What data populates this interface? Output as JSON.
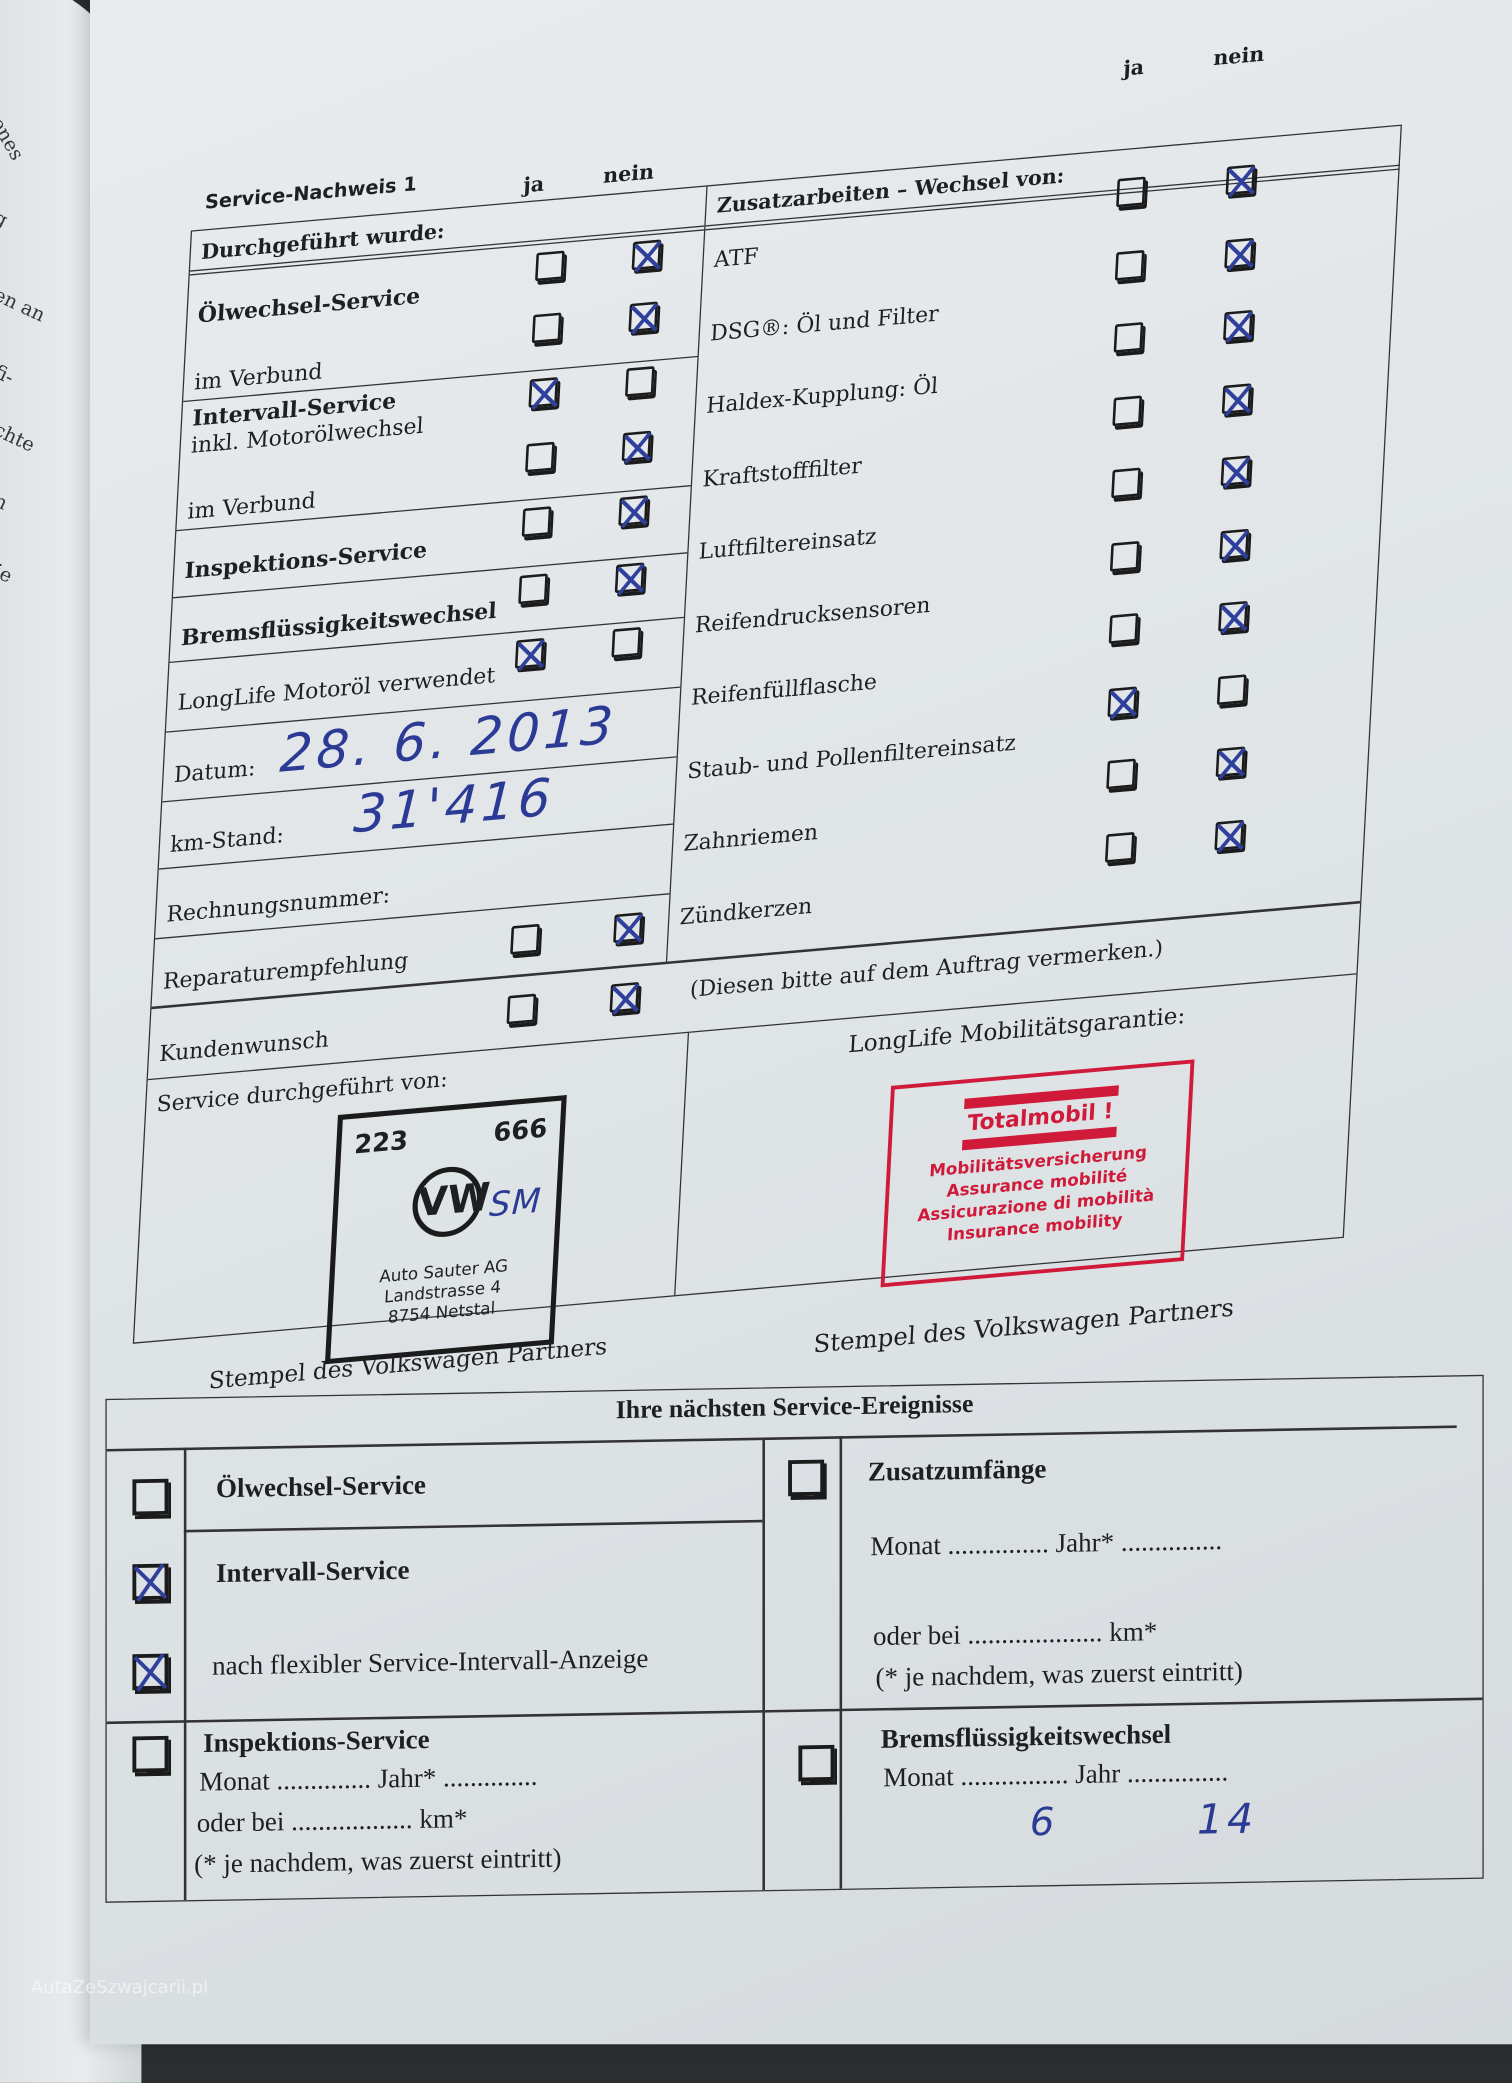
{
  "left_page_fragments": [
    "benes",
    "g",
    "en an",
    "fi-",
    "chte",
    "n",
    "ie"
  ],
  "form": {
    "title": "Service-Nachweis 1",
    "ja": "ja",
    "nein": "nein",
    "left_heading": "Durchgeführt wurde:",
    "left_rows": [
      {
        "label": "Ölwechsel-Service",
        "bold": true,
        "ja": false,
        "nein": true
      },
      {
        "label": "im Verbund",
        "bold": false,
        "ja": false,
        "nein": true
      },
      {
        "label": "Intervall-Service",
        "sub": "inkl. Motorölwechsel",
        "bold": true,
        "ja": true,
        "nein": false
      },
      {
        "label": "im Verbund",
        "bold": false,
        "ja": false,
        "nein": true
      },
      {
        "label": "Inspektions-Service",
        "bold": true,
        "ja": false,
        "nein": true
      },
      {
        "label": "Bremsflüssigkeitswechsel",
        "bold": true,
        "ja": false,
        "nein": true
      },
      {
        "label": "LongLife Motoröl verwendet",
        "bold": false,
        "ja": true,
        "nein": false
      }
    ],
    "datum_label": "Datum:",
    "datum_value": "28. 6. 2013",
    "km_label": "km-Stand:",
    "km_value": "31'416",
    "rechnung_label": "Rechnungsnummer:",
    "reparatur": {
      "label": "Reparaturempfehlung",
      "ja": false,
      "nein": true
    },
    "kundenwunsch": {
      "label": "Kundenwunsch",
      "ja": false,
      "nein": true
    },
    "kundenwunsch_note": "(Diesen bitte auf dem Auftrag vermerken.)",
    "right_heading": "Zusatzarbeiten – Wechsel von:",
    "right_rows": [
      {
        "label": "ATF",
        "ja": false,
        "nein": true
      },
      {
        "label": "DSG®: Öl und Filter",
        "ja": false,
        "nein": true
      },
      {
        "label": "Haldex-Kupplung: Öl",
        "ja": false,
        "nein": true
      },
      {
        "label": "Kraftstofffilter",
        "ja": false,
        "nein": true
      },
      {
        "label": "Luftfiltereinsatz",
        "ja": false,
        "nein": true
      },
      {
        "label": "Reifendrucksensoren",
        "ja": false,
        "nein": true
      },
      {
        "label": "Reifenfüllflasche",
        "ja": false,
        "nein": true
      },
      {
        "label": "Staub- und Pollenfiltereinsatz",
        "ja": true,
        "nein": false
      },
      {
        "label": "Zahnriemen",
        "ja": false,
        "nein": true
      },
      {
        "label": "Zündkerzen",
        "ja": false,
        "nein": true
      }
    ],
    "service_by_label": "Service durchgeführt von:",
    "dealer_stamp": {
      "num_left": "223",
      "num_right": "666",
      "logo": "VW",
      "lines": [
        "Auto Sauter AG",
        "Landstrasse 4",
        "8754 Netstal"
      ],
      "handwritten": "SM"
    },
    "stamp_caption": "Stempel des Volkswagen Partners",
    "longlife_label": "LongLife Mobilitätsgarantie:",
    "totalmobil_stamp": {
      "title": "Totalmobil !",
      "lines": [
        "Mobilitätsversicherung",
        "Assurance mobilité",
        "Assicurazione di mobilità",
        "Insurance mobility"
      ],
      "color": "#d01a3a"
    },
    "stamp_caption_right": "Stempel des Volkswagen Partners"
  },
  "next_events": {
    "heading": "Ihre nächsten Service-Ereignisse",
    "oelwechsel": {
      "label": "Ölwechsel-Service",
      "checked": false
    },
    "intervall": {
      "label": "Intervall-Service",
      "checked": true
    },
    "flexibel": {
      "label": "nach flexibler Service-Intervall-Anzeige",
      "checked": true
    },
    "inspektion": {
      "label": "Inspektions-Service",
      "checked": false,
      "monat": "Monat .............. Jahr* ..............",
      "km": "oder bei .................. km*",
      "note": "(* je nachdem, was zuerst eintritt)"
    },
    "zusatz": {
      "label": "Zusatzumfänge",
      "checked": false,
      "monat": "Monat ............... Jahr* ...............",
      "km": "oder bei .................... km*",
      "note": "(* je nachdem, was zuerst eintritt)"
    },
    "bremse": {
      "label": "Bremsflüssigkeitswechsel",
      "checked": false,
      "monat": "Monat ................ Jahr ...............",
      "monat_value": "6",
      "jahr_value": "14"
    }
  },
  "watermark": "AutaZeSzwajcarii.pl",
  "colors": {
    "ink": "#2b3b95",
    "stamp_red": "#d01a3a",
    "paper": "#e4e8ea"
  }
}
